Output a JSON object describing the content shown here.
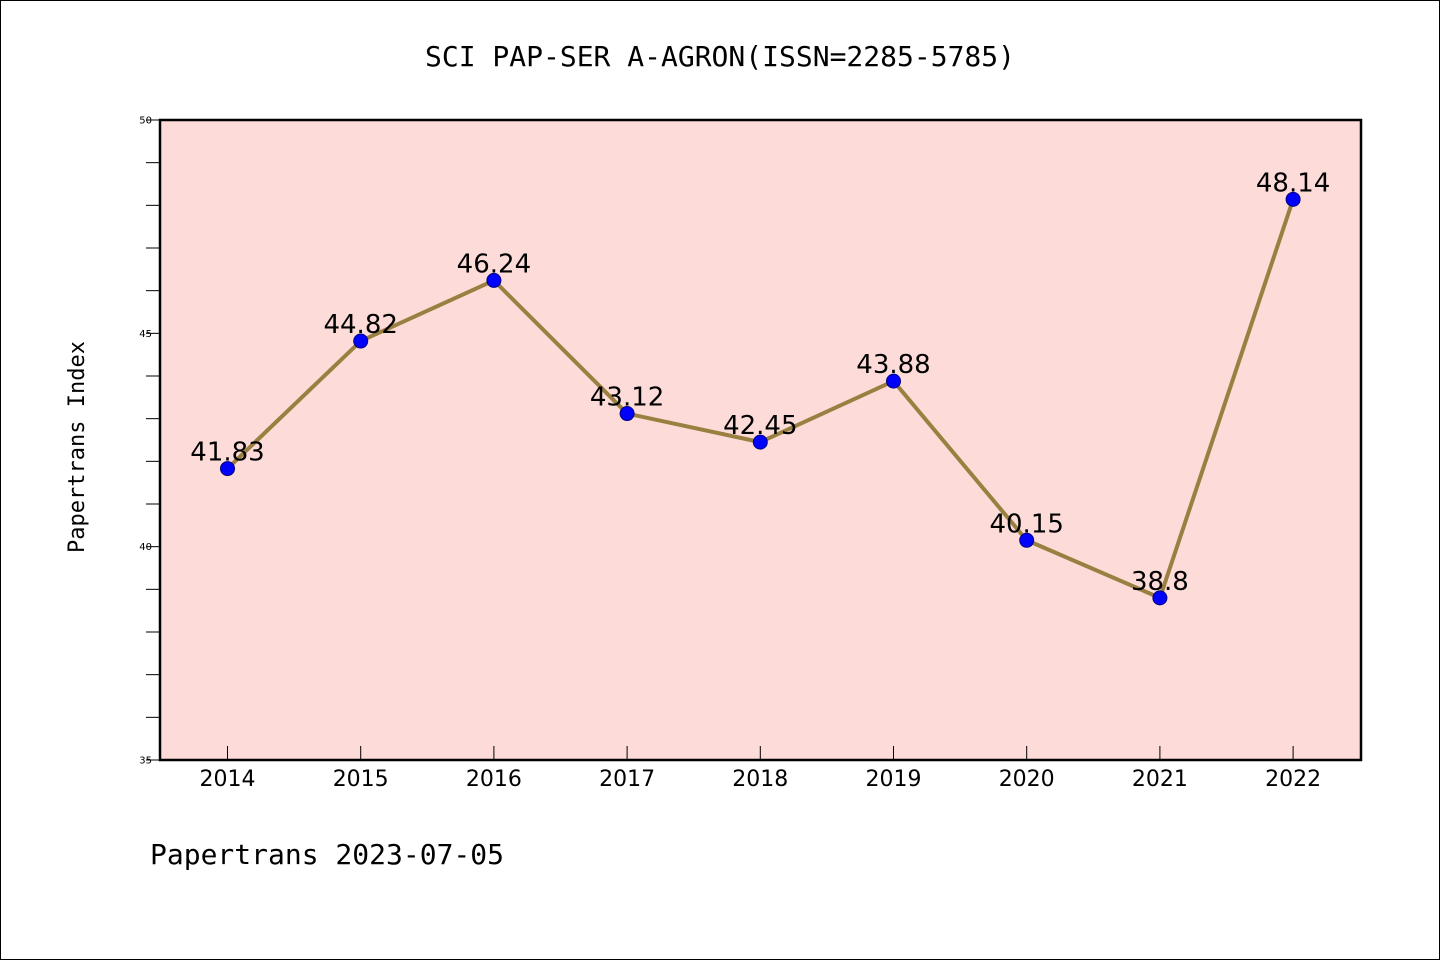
{
  "footer": "Papertrans 2023-07-05",
  "colors": {
    "plot_background": "#fddbd8",
    "line": "#9a8040",
    "marker_fill": "#0000ff",
    "marker_stroke": "#000080",
    "axes": "#000000"
  },
  "chart_data": {
    "type": "line",
    "title": "SCI PAP-SER A-AGRON(ISSN=2285-5785)",
    "xlabel": "",
    "ylabel": "Papertrans Index",
    "categories": [
      "2014",
      "2015",
      "2016",
      "2017",
      "2018",
      "2019",
      "2020",
      "2021",
      "2022"
    ],
    "series": [
      {
        "values": [
          41.83,
          44.82,
          46.24,
          43.12,
          42.45,
          43.88,
          40.15,
          38.8,
          48.14
        ],
        "labels": [
          "41.83",
          "44.82",
          "46.24",
          "43.12",
          "42.45",
          "43.88",
          "40.15",
          "38.8",
          "48.14"
        ]
      }
    ],
    "ylim": [
      35,
      50
    ],
    "yticks": [
      "35",
      "40",
      "45",
      "50"
    ],
    "y_minor_step": 1,
    "grid": false,
    "legend": "none"
  }
}
